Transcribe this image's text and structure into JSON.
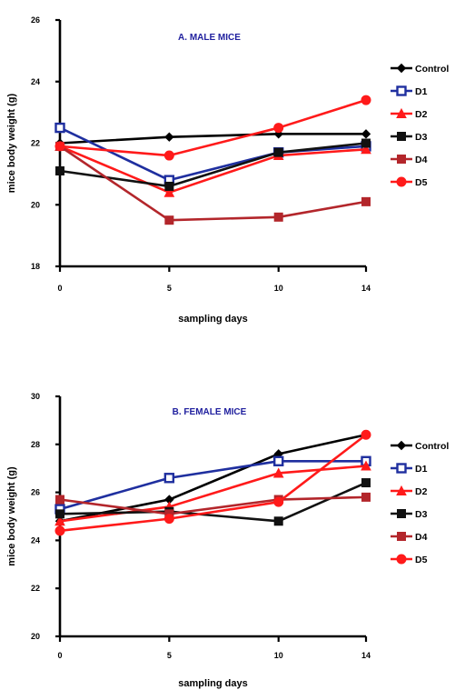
{
  "chart_data": [
    {
      "type": "line",
      "title": "A. MALE MICE",
      "title_color": "#1f1f9e",
      "xlabel": "sampling days",
      "ylabel": "mice body weight (g)",
      "x": [
        0,
        5,
        10,
        14
      ],
      "x_ticks": [
        "0",
        "5",
        "10",
        "14"
      ],
      "xlim": [
        0,
        14
      ],
      "y_ticks": [
        "18",
        "20",
        "22",
        "24",
        "26"
      ],
      "ylim": [
        18,
        26
      ],
      "grid": false,
      "legend_position": "right",
      "series": [
        {
          "name": "Control",
          "color": "#000000",
          "marker": "diamond",
          "values": [
            22.0,
            22.2,
            22.3,
            22.3
          ]
        },
        {
          "name": "D1",
          "color": "#1f2f9f",
          "marker": "square-open",
          "values": [
            22.5,
            20.8,
            21.7,
            21.9
          ]
        },
        {
          "name": "D2",
          "color": "#ff1a1a",
          "marker": "triangle",
          "values": [
            21.9,
            20.4,
            21.6,
            21.8
          ]
        },
        {
          "name": "D3",
          "color": "#111111",
          "marker": "square",
          "values": [
            21.1,
            20.6,
            21.7,
            22.0
          ]
        },
        {
          "name": "D4",
          "color": "#b3262b",
          "marker": "square",
          "values": [
            21.9,
            19.5,
            19.6,
            20.1
          ]
        },
        {
          "name": "D5",
          "color": "#ff1a1a",
          "marker": "circle",
          "values": [
            21.9,
            21.6,
            22.5,
            23.4
          ]
        }
      ]
    },
    {
      "type": "line",
      "title": "B. FEMALE MICE",
      "title_color": "#1f1f9e",
      "xlabel": "sampling days",
      "ylabel": "mice body weight (g)",
      "x": [
        0,
        5,
        10,
        14
      ],
      "x_ticks": [
        "0",
        "5",
        "10",
        "14"
      ],
      "xlim": [
        0,
        14
      ],
      "y_ticks": [
        "20",
        "22",
        "24",
        "26",
        "28",
        "30"
      ],
      "ylim": [
        20,
        30
      ],
      "grid": false,
      "legend_position": "right",
      "series": [
        {
          "name": "Control",
          "color": "#000000",
          "marker": "diamond",
          "values": [
            24.8,
            25.7,
            27.6,
            28.4
          ]
        },
        {
          "name": "D1",
          "color": "#1f2f9f",
          "marker": "square-open",
          "values": [
            25.3,
            26.6,
            27.3,
            27.3
          ]
        },
        {
          "name": "D2",
          "color": "#ff1a1a",
          "marker": "triangle",
          "values": [
            24.8,
            25.4,
            26.8,
            27.1
          ]
        },
        {
          "name": "D3",
          "color": "#111111",
          "marker": "square",
          "values": [
            25.1,
            25.2,
            24.8,
            26.4
          ]
        },
        {
          "name": "D4",
          "color": "#b3262b",
          "marker": "square",
          "values": [
            25.7,
            25.1,
            25.7,
            25.8
          ]
        },
        {
          "name": "D5",
          "color": "#ff1a1a",
          "marker": "circle",
          "values": [
            24.4,
            24.9,
            25.6,
            28.4
          ]
        }
      ]
    }
  ]
}
